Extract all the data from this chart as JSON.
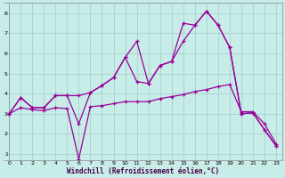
{
  "xlabel": "Windchill (Refroidissement éolien,°C)",
  "background_color": "#c8ece8",
  "grid_color": "#9dcfca",
  "line_color": "#990099",
  "xlim": [
    -0.5,
    23.5
  ],
  "ylim": [
    0.7,
    8.5
  ],
  "xticks": [
    0,
    1,
    2,
    3,
    4,
    5,
    6,
    7,
    8,
    9,
    10,
    11,
    12,
    13,
    14,
    15,
    16,
    17,
    18,
    19,
    20,
    21,
    22,
    23
  ],
  "yticks": [
    1,
    2,
    3,
    4,
    5,
    6,
    7,
    8
  ],
  "line1_x": [
    0,
    1,
    2,
    3,
    4,
    5,
    6,
    7,
    8,
    9,
    10,
    11,
    12,
    13,
    14,
    15,
    16,
    17,
    18,
    19,
    20,
    21,
    22,
    23
  ],
  "line1_y": [
    3.0,
    3.8,
    3.3,
    3.3,
    3.9,
    3.9,
    2.5,
    4.05,
    4.4,
    4.8,
    5.8,
    6.6,
    4.5,
    5.4,
    5.6,
    7.5,
    7.4,
    8.1,
    7.4,
    6.3,
    3.0,
    3.05,
    2.2,
    1.4
  ],
  "line2_x": [
    0,
    1,
    2,
    3,
    4,
    5,
    6,
    7,
    8,
    9,
    10,
    11,
    12,
    13,
    14,
    15,
    16,
    17,
    18,
    19,
    20,
    21,
    22,
    23
  ],
  "line2_y": [
    3.0,
    3.3,
    3.2,
    3.15,
    3.3,
    3.25,
    0.75,
    3.35,
    3.4,
    3.5,
    3.6,
    3.6,
    3.6,
    3.75,
    3.85,
    3.95,
    4.1,
    4.2,
    4.35,
    4.45,
    3.1,
    3.1,
    2.5,
    1.5
  ],
  "line3_x": [
    0,
    1,
    2,
    3,
    4,
    5,
    6,
    7,
    8,
    9,
    10,
    11,
    12,
    13,
    14,
    15,
    16,
    17,
    18,
    19,
    20,
    21,
    22,
    23
  ],
  "line3_y": [
    3.0,
    3.8,
    3.3,
    3.3,
    3.9,
    3.9,
    3.9,
    4.05,
    4.4,
    4.8,
    5.8,
    4.6,
    4.5,
    5.4,
    5.6,
    6.6,
    7.4,
    8.1,
    7.4,
    6.3,
    3.0,
    3.05,
    2.2,
    1.4
  ]
}
